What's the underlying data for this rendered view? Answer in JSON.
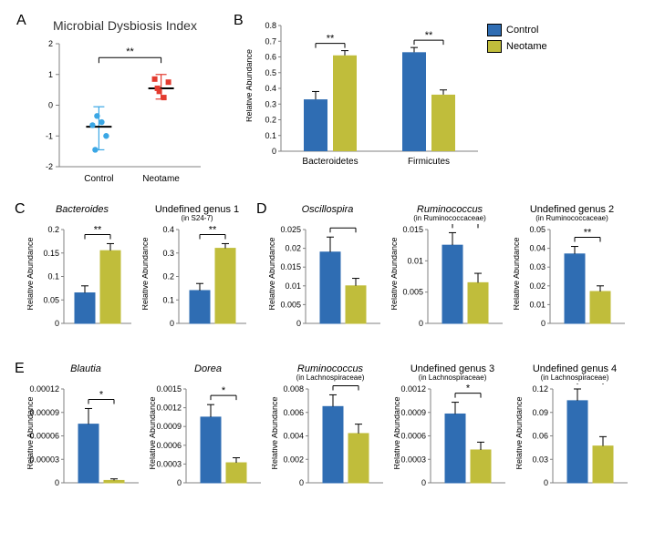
{
  "colors": {
    "control_bar": "#2f6db3",
    "neotame_bar": "#c0bd3b",
    "scatter_control": "#3ba7e5",
    "scatter_neotame": "#e33b2f",
    "median_line": "#000000",
    "axis": "#808080",
    "error": "#000000",
    "bg": "#ffffff"
  },
  "panelA": {
    "label": "A",
    "title": "Microbial Dysbiosis Index",
    "title_fontsize": 14,
    "xlabels": [
      "Control",
      "Neotame"
    ],
    "ylim": [
      -2,
      2
    ],
    "yticks": [
      -2,
      -1,
      0,
      1,
      2
    ],
    "control_points": [
      -0.65,
      -0.35,
      -0.55,
      -1.0,
      -1.45
    ],
    "neotame_points": [
      0.85,
      0.45,
      0.25,
      0.75,
      0.55
    ],
    "control_median": -0.7,
    "neotame_median": 0.55,
    "control_err_hi": -0.05,
    "control_err_lo": -1.45,
    "neotame_err_hi": 1.0,
    "neotame_err_lo": 0.2,
    "sig": "**"
  },
  "panelB": {
    "label": "B",
    "ylabel": "Relative Abundance",
    "ylim": [
      0,
      0.8
    ],
    "yticks": [
      0,
      0.1,
      0.2,
      0.3,
      0.4,
      0.5,
      0.6,
      0.7,
      0.8
    ],
    "categories": [
      "Bacteroidetes",
      "Firmicutes"
    ],
    "control_vals": [
      0.33,
      0.63
    ],
    "neotame_vals": [
      0.61,
      0.36
    ],
    "control_err": [
      0.05,
      0.03
    ],
    "neotame_err": [
      0.03,
      0.03
    ],
    "sig": [
      "**",
      "**"
    ],
    "legend": {
      "control": "Control",
      "neotame": "Neotame"
    }
  },
  "panelC": {
    "label": "C",
    "charts": [
      {
        "title": "Bacteroides",
        "italic": true,
        "ylim": [
          0,
          0.2
        ],
        "yticks": [
          0,
          0.05,
          0.1,
          0.15,
          0.2
        ],
        "vals": [
          0.065,
          0.155
        ],
        "err": [
          0.015,
          0.015
        ],
        "sig": "**"
      },
      {
        "title": "Undefined genus 1",
        "sub": "(in S24-7)",
        "italic": false,
        "ylim": [
          0,
          0.4
        ],
        "yticks": [
          0,
          0.1,
          0.2,
          0.3,
          0.4
        ],
        "vals": [
          0.14,
          0.32
        ],
        "err": [
          0.03,
          0.02
        ],
        "sig": "**"
      }
    ]
  },
  "panelD": {
    "label": "D",
    "charts": [
      {
        "title": "Oscillospira",
        "italic": true,
        "ylim": [
          0,
          0.025
        ],
        "yticks": [
          0,
          0.005,
          0.01,
          0.015,
          0.02,
          0.025
        ],
        "vals": [
          0.019,
          0.01
        ],
        "err": [
          0.004,
          0.002
        ],
        "sig": "*"
      },
      {
        "title": "Ruminococcus",
        "sub": "(in Ruminococcaceae)",
        "italic": true,
        "ylim": [
          0,
          0.015
        ],
        "yticks": [
          0,
          0.005,
          0.01,
          0.015
        ],
        "vals": [
          0.0125,
          0.0065
        ],
        "err": [
          0.002,
          0.0015
        ],
        "sig": "*"
      },
      {
        "title": "Undefined genus 2",
        "sub": "(in Ruminococcaceae)",
        "italic": false,
        "ylim": [
          0,
          0.05
        ],
        "yticks": [
          0,
          0.01,
          0.02,
          0.03,
          0.04,
          0.05
        ],
        "vals": [
          0.037,
          0.017
        ],
        "err": [
          0.004,
          0.003
        ],
        "sig": "**"
      }
    ]
  },
  "panelE": {
    "label": "E",
    "charts": [
      {
        "title": "Blautia",
        "italic": true,
        "ylim": [
          0,
          0.00012
        ],
        "yticks": [
          0,
          3e-05,
          6e-05,
          9e-05,
          0.00012
        ],
        "vals": [
          7.5e-05,
          3e-06
        ],
        "err": [
          2e-05,
          2e-06
        ],
        "sig": "*"
      },
      {
        "title": "Dorea",
        "italic": true,
        "ylim": [
          0,
          0.0015
        ],
        "yticks": [
          0,
          0.0003,
          0.0006,
          0.0009,
          0.0012,
          0.0015
        ],
        "vals": [
          0.00105,
          0.00032
        ],
        "err": [
          0.0002,
          8e-05
        ],
        "sig": "*"
      },
      {
        "title": "Ruminococcus",
        "sub": "(in Lachnospiraceae)",
        "italic": true,
        "ylim": [
          0,
          0.008
        ],
        "yticks": [
          0,
          0.002,
          0.004,
          0.006,
          0.008
        ],
        "vals": [
          0.0065,
          0.0042
        ],
        "err": [
          0.001,
          0.0008
        ],
        "sig": "*"
      },
      {
        "title": "Undefined genus 3",
        "sub": "(in Lachnospiraceae)",
        "italic": false,
        "ylim": [
          0,
          0.0012
        ],
        "yticks": [
          0,
          0.0003,
          0.0006,
          0.0009,
          0.0012
        ],
        "vals": [
          0.00088,
          0.00042
        ],
        "err": [
          0.00015,
          0.0001
        ],
        "sig": "*"
      },
      {
        "title": "Undefined genus 4",
        "sub": "(in Lachnospiraceae)",
        "italic": false,
        "ylim": [
          0,
          0.12
        ],
        "yticks": [
          0,
          0.03,
          0.06,
          0.09,
          0.12
        ],
        "vals": [
          0.105,
          0.047
        ],
        "err": [
          0.015,
          0.012
        ],
        "sig": "*"
      }
    ]
  },
  "layout": {
    "total_w": 709,
    "total_h": 575
  }
}
